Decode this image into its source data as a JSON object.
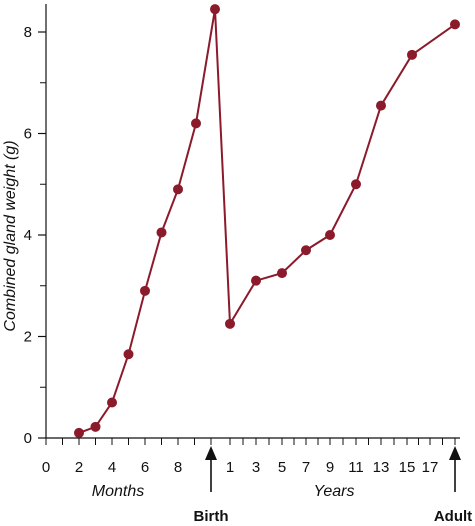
{
  "chart_data": {
    "type": "line",
    "ylabel": "Combined gland weight (g)",
    "ylim": [
      0,
      8
    ],
    "y_ticks": [
      "0",
      "2",
      "4",
      "6",
      "8"
    ],
    "x_ticks": [
      "0",
      "2",
      "4",
      "6",
      "8",
      "1",
      "3",
      "5",
      "7",
      "9",
      "11",
      "13",
      "15",
      "17"
    ],
    "x_group_labels": {
      "months": "Months",
      "years": "Years"
    },
    "markers": {
      "birth": "Birth",
      "adult": "Adult"
    },
    "color": "#8b1a2b",
    "series": [
      {
        "points": [
          {
            "x": "2 months",
            "y": 0.1
          },
          {
            "x": "3 months",
            "y": 0.22
          },
          {
            "x": "4 months",
            "y": 0.7
          },
          {
            "x": "5 months",
            "y": 1.65
          },
          {
            "x": "6 months",
            "y": 2.9
          },
          {
            "x": "7 months",
            "y": 4.05
          },
          {
            "x": "8 months",
            "y": 4.9
          },
          {
            "x": "9 months",
            "y": 6.2
          },
          {
            "x": "Birth",
            "y": 8.45
          },
          {
            "x": "1 year",
            "y": 2.25
          },
          {
            "x": "3 years",
            "y": 3.1
          },
          {
            "x": "5 years",
            "y": 3.25
          },
          {
            "x": "7 years",
            "y": 3.7
          },
          {
            "x": "9 years",
            "y": 4.0
          },
          {
            "x": "11 years",
            "y": 5.0
          },
          {
            "x": "13 years",
            "y": 6.55
          },
          {
            "x": "15 years",
            "y": 7.55
          },
          {
            "x": "Adult",
            "y": 8.15
          }
        ]
      }
    ]
  }
}
